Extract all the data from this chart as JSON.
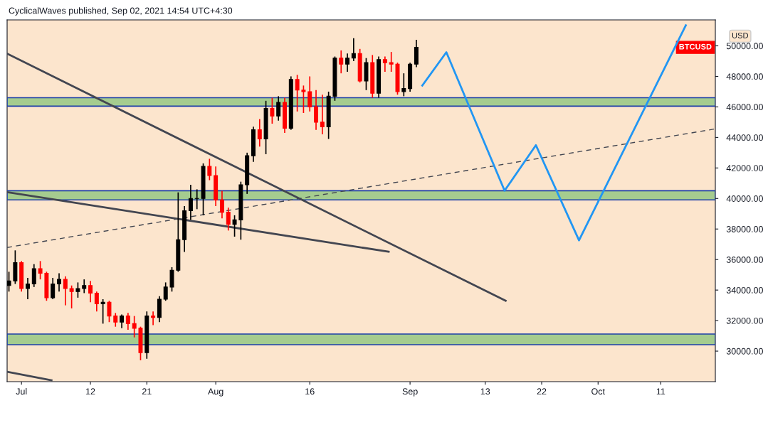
{
  "chart_data": {
    "type": "candlestick",
    "title": "CyclicalWaves published, Sep 02, 2021 14:54 UTC+4:30",
    "ylabel": "USD",
    "annotations": [
      "BTCUSD"
    ],
    "x": [
      "2021-06-29",
      "2021-06-30",
      "2021-07-01",
      "2021-07-02",
      "2021-07-03",
      "2021-07-04",
      "2021-07-05",
      "2021-07-06",
      "2021-07-07",
      "2021-07-08",
      "2021-07-09",
      "2021-07-10",
      "2021-07-11",
      "2021-07-12",
      "2021-07-13",
      "2021-07-14",
      "2021-07-15",
      "2021-07-16",
      "2021-07-17",
      "2021-07-18",
      "2021-07-19",
      "2021-07-20",
      "2021-07-21",
      "2021-07-22",
      "2021-07-23",
      "2021-07-24",
      "2021-07-25",
      "2021-07-26",
      "2021-07-27",
      "2021-07-28",
      "2021-07-29",
      "2021-07-30",
      "2021-07-31",
      "2021-08-01",
      "2021-08-02",
      "2021-08-03",
      "2021-08-04",
      "2021-08-05",
      "2021-08-06",
      "2021-08-07",
      "2021-08-08",
      "2021-08-09",
      "2021-08-10",
      "2021-08-11",
      "2021-08-12",
      "2021-08-13",
      "2021-08-14",
      "2021-08-15",
      "2021-08-16",
      "2021-08-17",
      "2021-08-18",
      "2021-08-19",
      "2021-08-20",
      "2021-08-21",
      "2021-08-22",
      "2021-08-23",
      "2021-08-24",
      "2021-08-25",
      "2021-08-26",
      "2021-08-27",
      "2021-08-28",
      "2021-08-29",
      "2021-08-30",
      "2021-08-31",
      "2021-09-01",
      "2021-09-02"
    ],
    "ohlc": [
      [
        34300,
        35200,
        33900,
        34600
      ],
      [
        34600,
        36600,
        34400,
        35800
      ],
      [
        35800,
        35900,
        33900,
        34100
      ],
      [
        34100,
        34800,
        33400,
        34400
      ],
      [
        34400,
        35700,
        34200,
        35400
      ],
      [
        35400,
        35900,
        34700,
        35100
      ],
      [
        35100,
        35200,
        33300,
        33500
      ],
      [
        33500,
        34800,
        33400,
        34400
      ],
      [
        34400,
        35100,
        33900,
        34700
      ],
      [
        34700,
        34900,
        33000,
        34100
      ],
      [
        34100,
        34300,
        32800,
        33900
      ],
      [
        33900,
        34500,
        33500,
        34100
      ],
      [
        34100,
        34700,
        33800,
        34300
      ],
      [
        34300,
        34600,
        33200,
        33800
      ],
      [
        33800,
        33900,
        32600,
        33100
      ],
      [
        33100,
        33400,
        31800,
        33200
      ],
      [
        33200,
        33300,
        31900,
        32300
      ],
      [
        32300,
        32500,
        31600,
        31900
      ],
      [
        31900,
        32400,
        31500,
        32300
      ],
      [
        32300,
        32500,
        31400,
        31800
      ],
      [
        31800,
        32300,
        30900,
        31500
      ],
      [
        31500,
        31600,
        29400,
        29900
      ],
      [
        29900,
        32600,
        29500,
        32300
      ],
      [
        32300,
        32600,
        31700,
        32200
      ],
      [
        32200,
        33600,
        31900,
        33400
      ],
      [
        33400,
        34500,
        33300,
        34200
      ],
      [
        34200,
        35500,
        33900,
        35300
      ],
      [
        35300,
        40400,
        35200,
        37300
      ],
      [
        37300,
        39500,
        36500,
        39200
      ],
      [
        39200,
        40900,
        38600,
        40000
      ],
      [
        40000,
        40600,
        39300,
        40000
      ],
      [
        40000,
        42300,
        38900,
        42100
      ],
      [
        42100,
        42600,
        41200,
        41500
      ],
      [
        41500,
        42100,
        39500,
        39900
      ],
      [
        39900,
        40500,
        38700,
        39100
      ],
      [
        39100,
        39400,
        37900,
        38300
      ],
      [
        38300,
        38900,
        37500,
        38600
      ],
      [
        38600,
        41100,
        37300,
        40900
      ],
      [
        40900,
        43000,
        40300,
        42800
      ],
      [
        42800,
        44700,
        42400,
        44500
      ],
      [
        44500,
        45200,
        43400,
        43900
      ],
      [
        43900,
        46400,
        42900,
        45900
      ],
      [
        45900,
        46600,
        44900,
        45400
      ],
      [
        45400,
        46700,
        45100,
        46300
      ],
      [
        46300,
        46600,
        44300,
        44600
      ],
      [
        44600,
        48000,
        44500,
        47800
      ],
      [
        47800,
        48100,
        45700,
        47100
      ],
      [
        47100,
        47400,
        45600,
        47000
      ],
      [
        47000,
        48000,
        45700,
        46000
      ],
      [
        46000,
        47100,
        44500,
        45000
      ],
      [
        45000,
        46800,
        44200,
        44700
      ],
      [
        44700,
        47000,
        43900,
        46700
      ],
      [
        46700,
        49300,
        46400,
        49200
      ],
      [
        49200,
        49700,
        48200,
        48800
      ],
      [
        48800,
        49500,
        48300,
        49200
      ],
      [
        49200,
        50500,
        49000,
        49500
      ],
      [
        49500,
        49800,
        47600,
        47700
      ],
      [
        47700,
        49200,
        47100,
        48900
      ],
      [
        48900,
        49400,
        46600,
        46900
      ],
      [
        46900,
        49300,
        46600,
        49100
      ],
      [
        49100,
        49300,
        48300,
        48900
      ],
      [
        48900,
        49600,
        48300,
        48800
      ],
      [
        48800,
        48900,
        46800,
        47000
      ],
      [
        47000,
        48200,
        46700,
        47200
      ],
      [
        47200,
        48900,
        47000,
        48800
      ],
      [
        48800,
        50400,
        48600,
        49900
      ]
    ],
    "colors": [
      "#000000",
      "#000000",
      "#ff0000",
      "#000000",
      "#000000",
      "#ff0000",
      "#ff0000",
      "#000000",
      "#000000",
      "#ff0000",
      "#ff0000",
      "#000000",
      "#000000",
      "#ff0000",
      "#ff0000",
      "#000000",
      "#ff0000",
      "#ff0000",
      "#000000",
      "#ff0000",
      "#ff0000",
      "#ff0000",
      "#000000",
      "#ff0000",
      "#000000",
      "#000000",
      "#000000",
      "#000000",
      "#000000",
      "#000000",
      "#000000",
      "#000000",
      "#ff0000",
      "#ff0000",
      "#ff0000",
      "#ff0000",
      "#000000",
      "#000000",
      "#000000",
      "#000000",
      "#ff0000",
      "#000000",
      "#ff0000",
      "#000000",
      "#ff0000",
      "#000000",
      "#ff0000",
      "#ff0000",
      "#ff0000",
      "#ff0000",
      "#ff0000",
      "#000000",
      "#000000",
      "#ff0000",
      "#000000",
      "#000000",
      "#ff0000",
      "#000000",
      "#ff0000",
      "#000000",
      "#ff0000",
      "#ff0000",
      "#ff0000",
      "#000000",
      "#000000",
      "#000000"
    ],
    "series": [
      {
        "type": "line",
        "color": "#434651",
        "line_style": "solid",
        "x": [
          "2021-06-28T17:00",
          "2021-09-16T06:00"
        ],
        "values": [
          49490,
          33300
        ]
      },
      {
        "type": "line",
        "color": "#434651",
        "line_style": "solid",
        "x": [
          "2021-06-28T17:00",
          "2021-08-28T14:00"
        ],
        "values": [
          40420,
          36510
        ]
      },
      {
        "type": "line",
        "color": "#434651",
        "line_style": "solid",
        "x": [
          "2021-06-28T17:00",
          "2021-07-05T19:00"
        ],
        "values": [
          28650,
          28090
        ]
      },
      {
        "type": "line",
        "color": "#434651",
        "line_style": "dashed",
        "x": [
          "2021-06-28T17:00",
          "2021-10-19T17:00"
        ],
        "values": [
          36790,
          44560
        ]
      },
      {
        "type": "line",
        "color": "#2196f3",
        "line_style": "solid",
        "x": [
          "2021-09-02T23:00",
          "2021-09-06T19:00",
          "2021-09-16T02:00",
          "2021-09-21T02:00",
          "2021-09-27T23:00",
          "2021-10-15T00:00"
        ],
        "values": [
          47400,
          49580,
          40510,
          43490,
          37260,
          51350
        ]
      }
    ],
    "bands": [
      {
        "axis": "y",
        "from": 46050,
        "to": 46600,
        "color": "#a5cc8f"
      },
      {
        "axis": "y",
        "from": 39910,
        "to": 40510,
        "color": "#a5cc8f"
      },
      {
        "axis": "y",
        "from": 30420,
        "to": 31120,
        "color": "#a5cc8f"
      }
    ],
    "xlim": [
      "2021-06-28T17:00",
      "2021-10-19T17:00"
    ],
    "xticks": [
      {
        "value": "2021-07-01",
        "label": "Jul"
      },
      {
        "value": "2021-07-12",
        "label": "12"
      },
      {
        "value": "2021-07-21",
        "label": "21"
      },
      {
        "value": "2021-08-01",
        "label": "Aug"
      },
      {
        "value": "2021-08-16",
        "label": "16"
      },
      {
        "value": "2021-09-01",
        "label": "Sep"
      },
      {
        "value": "2021-09-13",
        "label": "13"
      },
      {
        "value": "2021-09-22",
        "label": "22"
      },
      {
        "value": "2021-10-01",
        "label": "Oct"
      },
      {
        "value": "2021-10-11",
        "label": "11"
      }
    ],
    "ylim": [
      28000,
      51700
    ],
    "yticks": [
      {
        "value": 30000,
        "label": "30000.00"
      },
      {
        "value": 32000,
        "label": "32000.00"
      },
      {
        "value": 34000,
        "label": "34000.00"
      },
      {
        "value": 36000,
        "label": "36000.00"
      },
      {
        "value": 38000,
        "label": "38000.00"
      },
      {
        "value": 40000,
        "label": "40000.00"
      },
      {
        "value": 42000,
        "label": "42000.00"
      },
      {
        "value": 44000,
        "label": "44000.00"
      },
      {
        "value": 46000,
        "label": "46000.00"
      },
      {
        "value": 48000,
        "label": "48000.00"
      },
      {
        "value": 50000,
        "label": "50000.00"
      }
    ]
  }
}
